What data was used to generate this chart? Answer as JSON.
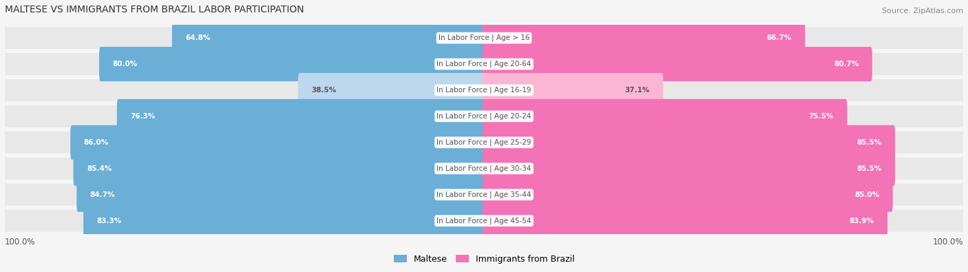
{
  "title": "MALTESE VS IMMIGRANTS FROM BRAZIL LABOR PARTICIPATION",
  "source": "Source: ZipAtlas.com",
  "categories": [
    "In Labor Force | Age > 16",
    "In Labor Force | Age 20-64",
    "In Labor Force | Age 16-19",
    "In Labor Force | Age 20-24",
    "In Labor Force | Age 25-29",
    "In Labor Force | Age 30-34",
    "In Labor Force | Age 35-44",
    "In Labor Force | Age 45-54"
  ],
  "maltese_values": [
    64.8,
    80.0,
    38.5,
    76.3,
    86.0,
    85.4,
    84.7,
    83.3
  ],
  "brazil_values": [
    66.7,
    80.7,
    37.1,
    75.5,
    85.5,
    85.5,
    85.0,
    83.9
  ],
  "maltese_color_strong": "#6baed6",
  "maltese_color_light": "#bdd7ee",
  "brazil_color_strong": "#f472b6",
  "brazil_color_light": "#fbb6d4",
  "bar_height": 0.72,
  "bg_color": "#f0f0f0",
  "row_bg_color": "#e8e8e8",
  "label_color_dark": "#555555",
  "label_color_white": "#ffffff",
  "center_label_color": "#555555",
  "legend_maltese": "Maltese",
  "legend_brazil": "Immigrants from Brazil",
  "xlim": 100.0,
  "footer_value": "100.0%"
}
